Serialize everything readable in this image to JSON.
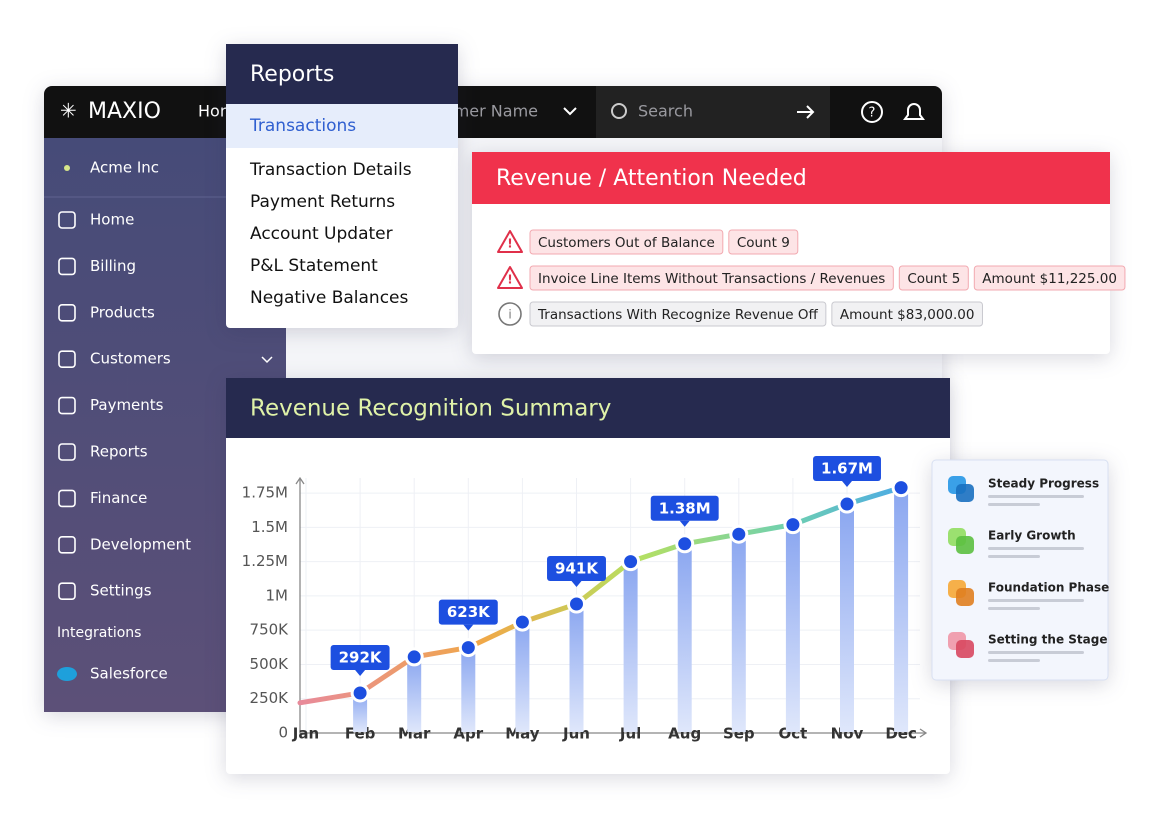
{
  "nav": {
    "logo": "MAXIO",
    "home": "Home",
    "customer": "Customer Name",
    "search": "Search"
  },
  "sidebar": {
    "account": "Acme Inc",
    "items": [
      "Home",
      "Billing",
      "Products",
      "Customers",
      "Payments",
      "Reports",
      "Finance",
      "Development",
      "Settings"
    ],
    "section": "Integrations",
    "integration": "Salesforce"
  },
  "reports_menu": {
    "title": "Reports",
    "items": [
      "Transactions",
      "Transaction Details",
      "Payment Returns",
      "Account Updater",
      "P&L Statement",
      "Negative Balances"
    ]
  },
  "alert": {
    "title": "Revenue / Attention Needed",
    "rows": [
      {
        "level": "warning",
        "tags": [
          "Customers Out of Balance",
          "Count 9"
        ]
      },
      {
        "level": "warning",
        "tags": [
          "Invoice Line Items Without Transactions / Revenues",
          "Count 5",
          "Amount $11,225.00"
        ]
      },
      {
        "level": "info",
        "tags": [
          "Transactions With Recognize Revenue Off",
          "Amount $83,000.00"
        ]
      }
    ]
  },
  "chart_data": {
    "type": "line",
    "title": "Revenue Recognition Summary",
    "categories": [
      "Jan",
      "Feb",
      "Mar",
      "Apr",
      "May",
      "Jun",
      "Jul",
      "Aug",
      "Sep",
      "Oct",
      "Nov",
      "Dec"
    ],
    "series": [
      {
        "values": [
          220000,
          292000,
          555000,
          623000,
          809000,
          941000,
          1250000,
          1380000,
          1450000,
          1520000,
          1670000,
          1790000
        ],
        "value_labels": [
          null,
          "292K",
          null,
          "623K",
          null,
          "941K",
          null,
          "1.38M",
          null,
          null,
          "1.67M",
          null
        ]
      }
    ],
    "ylim": [
      0,
      1860000
    ],
    "yticks": [
      0,
      {
        "value": 250000,
        "label": "250K"
      },
      {
        "value": 500000,
        "label": "500K"
      },
      {
        "value": 750000,
        "label": "750K"
      },
      {
        "value": 1000000,
        "label": "1M"
      },
      {
        "value": 1250000,
        "label": "1.25M"
      },
      {
        "value": 1500000,
        "label": "1.5M"
      },
      {
        "value": 1750000,
        "label": "1.75M"
      }
    ],
    "grid": true
  },
  "legend_panel": {
    "items": [
      "Steady Progress",
      "Early Growth",
      "Foundation Phase",
      "Setting the Stage"
    ]
  }
}
